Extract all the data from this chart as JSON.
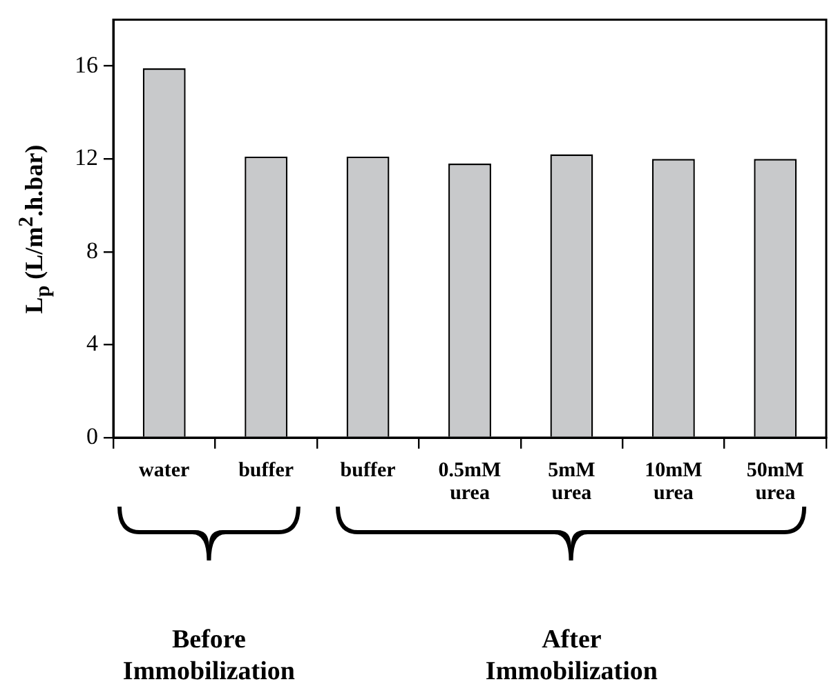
{
  "chart_data": {
    "type": "bar",
    "ylabel": "L$_{p}$ (L/m$^{2}$.h.bar)",
    "categories": [
      "water",
      "buffer",
      "buffer",
      "0.5mM urea",
      "5mM urea",
      "10mM urea",
      "50mM urea"
    ],
    "values": [
      15.9,
      12.1,
      12.1,
      11.8,
      12.2,
      12.0,
      12.0
    ],
    "color": "#c8c9cb",
    "ylim": [
      0,
      18
    ],
    "yticks": [
      0,
      4,
      8,
      12,
      16
    ],
    "grid": false,
    "legend": false,
    "annotations": [
      "Before Immobilization",
      "After Immobilization"
    ]
  }
}
